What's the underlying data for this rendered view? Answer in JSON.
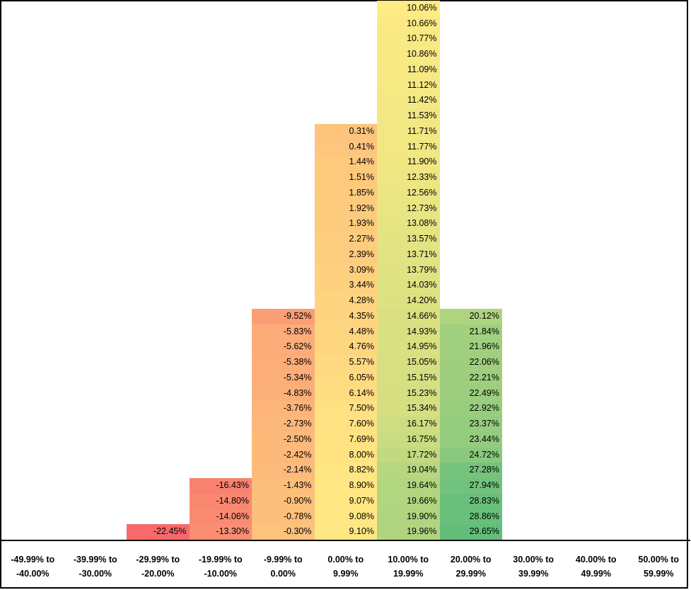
{
  "chart_data": {
    "type": "table",
    "title": "",
    "categories": [
      "-49.99% to\n-40.00%",
      "-39.99% to\n-30.00%",
      "-29.99% to\n-20.00%",
      "-19.99% to\n-10.00%",
      "-9.99% to\n0.00%",
      "0.00% to\n9.99%",
      "10.00% to\n19.99%",
      "20.00% to\n29.99%",
      "30.00% to\n39.99%",
      "40.00% to\n49.99%",
      "50.00% to\n59.99%"
    ],
    "columns": [
      [],
      [],
      [
        "-22.45%"
      ],
      [
        "-16.43%",
        "-14.80%",
        "-14.06%",
        "-13.30%"
      ],
      [
        "-9.52%",
        "-5.83%",
        "-5.62%",
        "-5.38%",
        "-5.34%",
        "-4.83%",
        "-3.76%",
        "-2.73%",
        "-2.50%",
        "-2.42%",
        "-2.14%",
        "-1.43%",
        "-0.90%",
        "-0.78%",
        "-0.30%"
      ],
      [
        "0.31%",
        "0.41%",
        "1.44%",
        "1.51%",
        "1.85%",
        "1.92%",
        "1.93%",
        "2.27%",
        "2.39%",
        "3.09%",
        "3.44%",
        "4.28%",
        "4.35%",
        "4.48%",
        "4.76%",
        "5.57%",
        "6.05%",
        "6.14%",
        "7.50%",
        "7.60%",
        "7.69%",
        "8.00%",
        "8.82%",
        "8.90%",
        "9.07%",
        "9.08%",
        "9.10%"
      ],
      [
        "10.06%",
        "10.66%",
        "10.77%",
        "10.86%",
        "11.09%",
        "11.12%",
        "11.42%",
        "11.53%",
        "11.71%",
        "11.77%",
        "11.90%",
        "12.33%",
        "12.56%",
        "12.73%",
        "13.08%",
        "13.57%",
        "13.71%",
        "13.79%",
        "14.03%",
        "14.20%",
        "14.66%",
        "14.93%",
        "14.95%",
        "15.05%",
        "15.15%",
        "15.23%",
        "15.34%",
        "16.17%",
        "16.75%",
        "17.72%",
        "19.04%",
        "19.64%",
        "19.66%",
        "19.90%",
        "19.96%"
      ],
      [
        "20.12%",
        "21.84%",
        "21.96%",
        "22.06%",
        "22.21%",
        "22.49%",
        "22.92%",
        "23.37%",
        "23.44%",
        "24.72%",
        "27.28%",
        "27.94%",
        "28.83%",
        "28.86%",
        "29.65%"
      ],
      [],
      [],
      []
    ],
    "color_scale": {
      "low": "#f8696b",
      "mid": "#ffeb84",
      "high": "#63be7b",
      "min_value": -22.45,
      "max_value": 29.65
    },
    "grid": false
  }
}
